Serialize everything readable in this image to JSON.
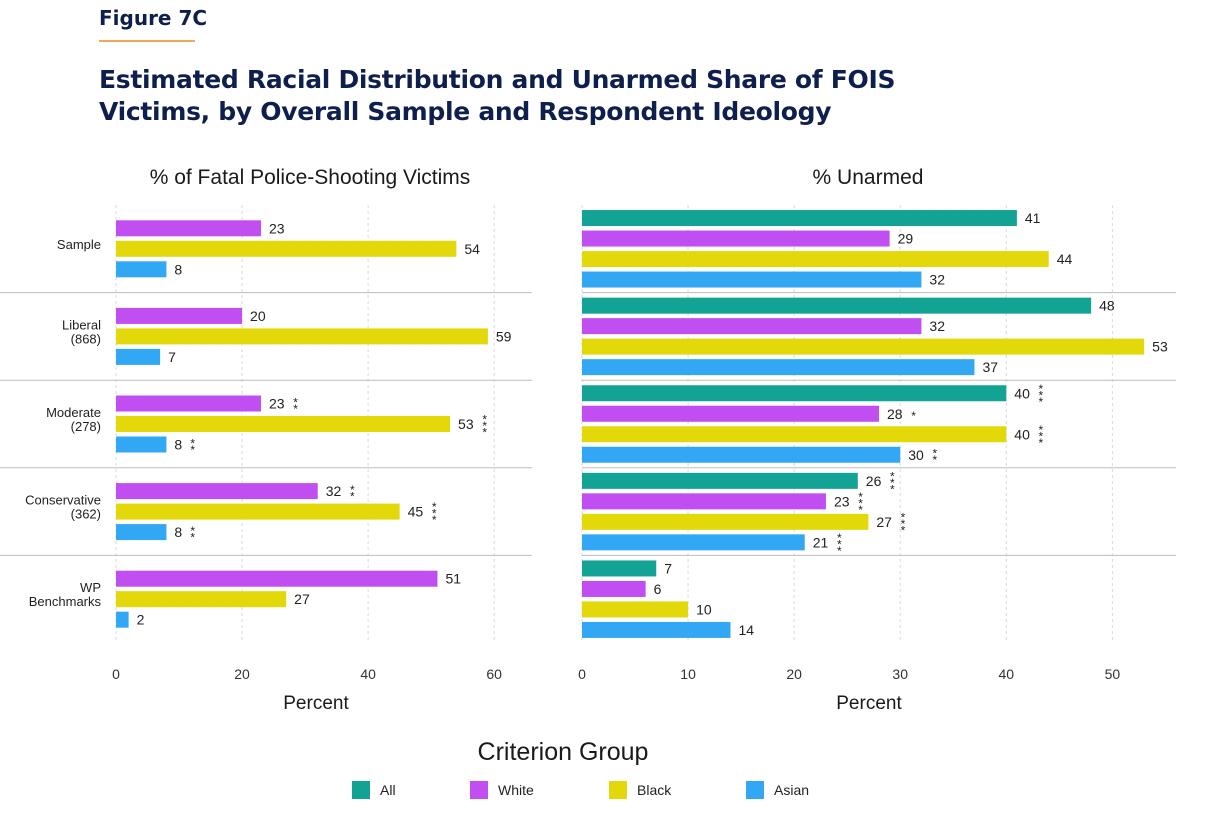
{
  "figure_label": "Figure 7C",
  "figure_title": "Estimated Racial Distribution and Unarmed Share of FOIS Victims, by Overall Sample and Respondent Ideology",
  "colors": {
    "All": "#12a394",
    "White": "#c04ef0",
    "Black": "#e3d80a",
    "Asian": "#32a8f5",
    "grid": "#d9d9d9",
    "separator": "#bdbdbd"
  },
  "legend": {
    "title": "Criterion Group",
    "items": [
      "All",
      "White",
      "Black",
      "Asian"
    ]
  },
  "chart_data": [
    {
      "type": "bar",
      "orientation": "horizontal",
      "title": "% of Fatal Police-Shooting Victims",
      "xlabel": "Percent",
      "xlim": [
        0,
        66
      ],
      "xticks": [
        0,
        20,
        40,
        60
      ],
      "grid": true,
      "categories": [
        "Sample",
        "Liberal\n(868)",
        "Moderate\n(278)",
        "Conservative\n(362)",
        "WP\nBenchmarks"
      ],
      "series": [
        {
          "name": "White",
          "values": [
            23,
            20,
            23,
            32,
            51
          ],
          "sig": [
            "",
            "",
            "**",
            "**",
            ""
          ]
        },
        {
          "name": "Black",
          "values": [
            54,
            59,
            53,
            45,
            27
          ],
          "sig": [
            "",
            "",
            "***",
            "***",
            ""
          ]
        },
        {
          "name": "Asian",
          "values": [
            8,
            7,
            8,
            8,
            2
          ],
          "sig": [
            "",
            "",
            "**",
            "**",
            ""
          ]
        }
      ]
    },
    {
      "type": "bar",
      "orientation": "horizontal",
      "title": "% Unarmed",
      "xlabel": "Percent",
      "xlim": [
        0,
        56
      ],
      "xticks": [
        0,
        10,
        20,
        30,
        40,
        50
      ],
      "grid": true,
      "categories": [
        "Sample",
        "Liberal\n(868)",
        "Moderate\n(278)",
        "Conservative\n(362)",
        "WP\nBenchmarks"
      ],
      "series": [
        {
          "name": "All",
          "values": [
            41,
            48,
            40,
            26,
            7
          ],
          "sig": [
            "",
            "",
            "***",
            "***",
            ""
          ]
        },
        {
          "name": "White",
          "values": [
            29,
            32,
            28,
            23,
            6
          ],
          "sig": [
            "",
            "",
            "*",
            "***",
            ""
          ]
        },
        {
          "name": "Black",
          "values": [
            44,
            53,
            40,
            27,
            10
          ],
          "sig": [
            "",
            "",
            "***",
            "***",
            ""
          ]
        },
        {
          "name": "Asian",
          "values": [
            32,
            37,
            30,
            21,
            14
          ],
          "sig": [
            "",
            "",
            "**",
            "***",
            ""
          ]
        }
      ]
    }
  ]
}
